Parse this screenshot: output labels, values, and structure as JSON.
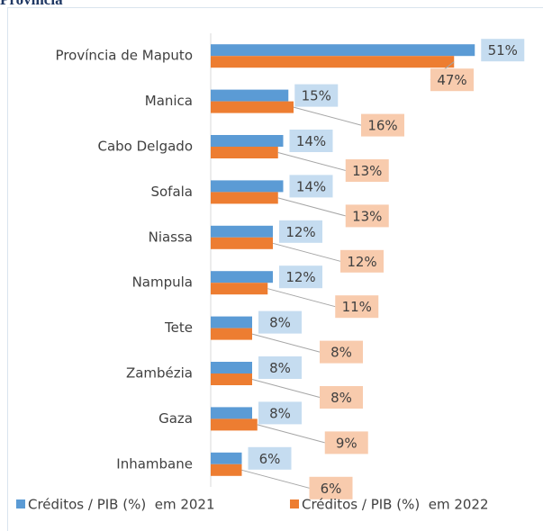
{
  "chart_data": {
    "type": "bar",
    "orientation": "horizontal",
    "title": "Província",
    "categories": [
      "Província de Maputo",
      "Manica",
      "Cabo Delgado",
      "Sofala",
      "Niassa",
      "Nampula",
      "Tete",
      "Zambézia",
      "Gaza",
      "Inhambane"
    ],
    "series": [
      {
        "name": "Créditos / PIB (%)  em 2021",
        "color": "#5b9bd5",
        "label_color": "#c5dcf0",
        "values": [
          51,
          15,
          14,
          14,
          12,
          12,
          8,
          8,
          8,
          6
        ],
        "value_labels": [
          "51%",
          "15%",
          "14%",
          "14%",
          "12%",
          "12%",
          "8%",
          "8%",
          "8%",
          "6%"
        ]
      },
      {
        "name": "Créditos / PIB (%)  em 2022",
        "color": "#ed7d31",
        "label_color": "#f8cbad",
        "values": [
          47,
          16,
          13,
          13,
          12,
          11,
          8,
          8,
          9,
          6
        ],
        "value_labels": [
          "47%",
          "16%",
          "13%",
          "13%",
          "12%",
          "11%",
          "8%",
          "8%",
          "9%",
          "6%"
        ]
      }
    ],
    "xlim": [
      0,
      60
    ],
    "legend": "bottom"
  }
}
